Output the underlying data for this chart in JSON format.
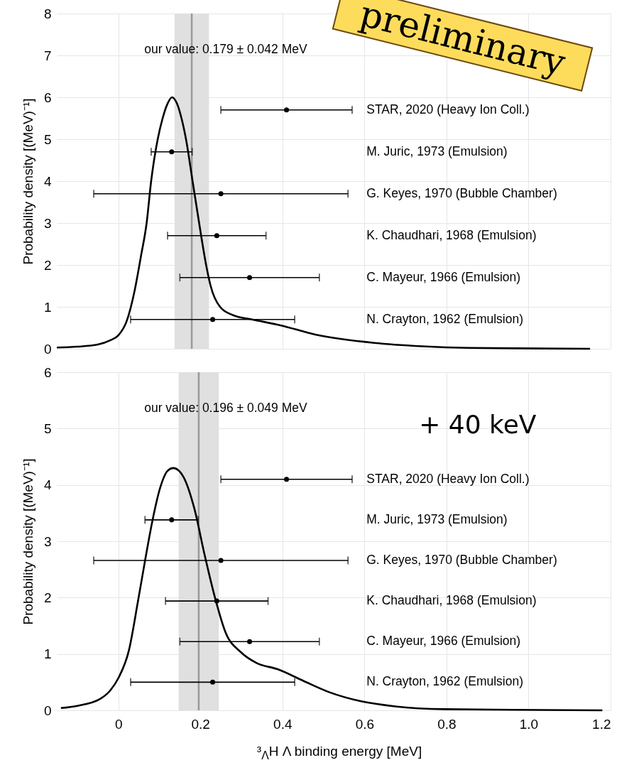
{
  "chart_data": [
    {
      "type": "line",
      "ylabel": "Probability density [(MeV)⁻¹]",
      "xlim": [
        -0.15,
        1.2
      ],
      "ylim": [
        0,
        8
      ],
      "xticks": [
        0,
        0.2,
        0.4,
        0.6,
        0.8,
        1,
        1.2
      ],
      "yticks": [
        0,
        1,
        2,
        3,
        4,
        5,
        6,
        7,
        8
      ],
      "tick_labels": "y",
      "grid": true,
      "annotations": [
        "our value: 0.179 ± 0.042 MeV",
        "preliminary",
        "STAR, 2020 (Heavy Ion Coll.)",
        "M. Juric, 1973 (Emulsion)",
        "G. Keyes, 1970 (Bubble Chamber)",
        "K. Chaudhari, 1968 (Emulsion)",
        "C. Mayeur, 1966 (Emulsion)",
        "N. Crayton, 1962 (Emulsion)"
      ],
      "bands": [
        {
          "axis": "x",
          "from": 0.137,
          "to": 0.221,
          "color": "#e0e0e0"
        }
      ],
      "ref_lines": [
        {
          "axis": "x",
          "value": 0.179,
          "color": "#999999"
        }
      ],
      "series": [
        {
          "type": "line",
          "color": "#000000",
          "x": [
            -0.15,
            -0.1,
            -0.05,
            -0.02,
            0,
            0.02,
            0.04,
            0.055,
            0.069,
            0.08,
            0.096,
            0.108,
            0.12,
            0.131,
            0.143,
            0.154,
            0.165,
            0.181,
            0.197,
            0.214,
            0.225,
            0.248,
            0.28,
            0.326,
            0.395,
            0.48,
            0.624,
            0.74,
            0.855,
            0.969,
            1.15
          ],
          "values": [
            0.03,
            0.05,
            0.1,
            0.2,
            0.32,
            0.65,
            1.4,
            2.2,
            3,
            4,
            5,
            5.5,
            5.85,
            6,
            5.85,
            5.5,
            5,
            4,
            3,
            2,
            1.5,
            1,
            0.8,
            0.7,
            0.56,
            0.34,
            0.14,
            0.06,
            0.02,
            0.01,
            0
          ]
        },
        {
          "type": "scatter",
          "color": "#000000",
          "marker": "circle",
          "x": [
            0.41,
            0.13,
            0.25,
            0.24,
            0.32,
            0.23
          ],
          "values": [
            5.7,
            4.7,
            3.7,
            2.7,
            1.7,
            0.7
          ],
          "xerrors": [
            0.16,
            0.05,
            0.31,
            0.12,
            0.17,
            0.2
          ]
        }
      ]
    },
    {
      "type": "line",
      "xlabel": "³$_{Λ}$H Λ binding energy [MeV]",
      "ylabel": "Probability density [(MeV)⁻¹]",
      "xlim": [
        -0.15,
        1.2
      ],
      "ylim": [
        0,
        6
      ],
      "xticks": [
        0,
        0.2,
        0.4,
        0.6,
        0.8,
        {
          "value": 1,
          "label": "1.0"
        },
        1.2
      ],
      "yticks": [
        0,
        1,
        2,
        3,
        4,
        5,
        6
      ],
      "grid": true,
      "annotations": [
        "our value: 0.196 ± 0.049 MeV",
        "+ 40 keV",
        "STAR, 2020 (Heavy Ion Coll.)",
        "M. Juric, 1973 (Emulsion)",
        "G. Keyes, 1970 (Bubble Chamber)",
        "K. Chaudhari, 1968 (Emulsion)",
        "C. Mayeur, 1966 (Emulsion)",
        "N. Crayton, 1962 (Emulsion)"
      ],
      "bands": [
        {
          "axis": "x",
          "from": 0.147,
          "to": 0.245,
          "color": "#e0e0e0"
        }
      ],
      "ref_lines": [
        {
          "axis": "x",
          "value": 0.196,
          "color": "#999999"
        }
      ],
      "series": [
        {
          "type": "line",
          "color": "#000000",
          "x": [
            -0.14,
            -0.1,
            -0.045,
            -0.02,
            0,
            0.026,
            0.048,
            0.065,
            0.083,
            0.102,
            0.12,
            0.134,
            0.148,
            0.159,
            0.185,
            0.21,
            0.236,
            0.261,
            0.299,
            0.337,
            0.388,
            0.452,
            0.515,
            0.592,
            0.675,
            0.796,
            0.96,
            1.18
          ],
          "values": [
            0.04,
            0.08,
            0.2,
            0.35,
            0.57,
            1.07,
            1.94,
            2.65,
            3.36,
            3.95,
            4.25,
            4.3,
            4.25,
            4.14,
            3.59,
            2.77,
            1.99,
            1.39,
            1.03,
            0.84,
            0.73,
            0.52,
            0.32,
            0.16,
            0.07,
            0.02,
            0.01,
            0
          ]
        },
        {
          "type": "scatter",
          "color": "#000000",
          "marker": "circle",
          "x": [
            0.41,
            0.13,
            0.25,
            0.24,
            0.32,
            0.23
          ],
          "values": [
            4.1,
            3.38,
            2.66,
            1.94,
            1.22,
            0.5
          ],
          "xerrors": [
            0.16,
            0.065,
            0.31,
            0.125,
            0.17,
            0.2
          ]
        }
      ]
    }
  ]
}
